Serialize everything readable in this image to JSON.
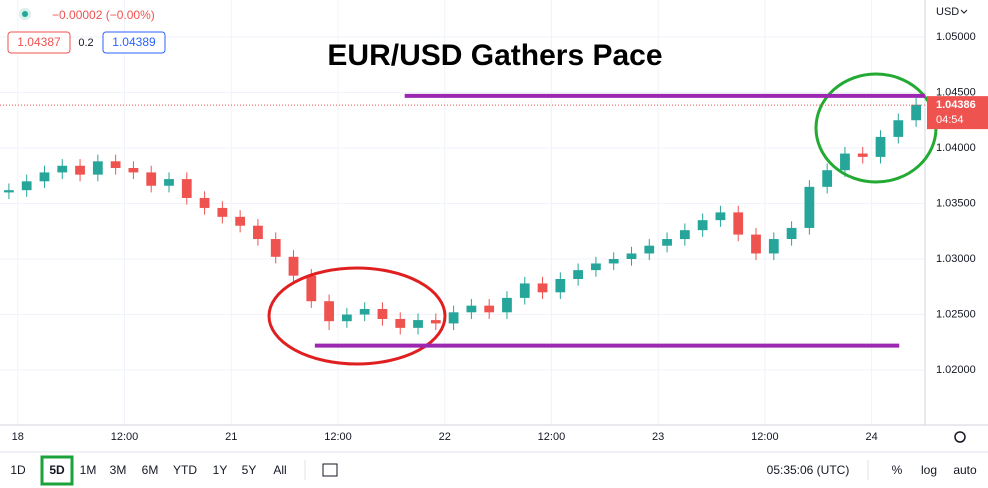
{
  "header": {
    "change": "−0.00002 (−0.00%)",
    "bid": "1.04387",
    "spread": "0.2",
    "ask": "1.04389"
  },
  "chart_data": {
    "type": "candlestick",
    "title": "EUR/USD Gathers Pace",
    "currency": "USD",
    "x": [
      -1,
      1,
      3,
      5,
      7,
      9,
      11,
      13,
      15,
      17,
      19,
      21,
      23,
      25,
      27,
      29,
      31,
      33,
      35,
      37,
      39,
      41,
      43,
      45,
      47,
      49,
      51,
      53,
      55,
      57,
      59,
      61,
      63,
      65,
      67,
      69,
      71,
      73,
      75,
      77,
      79,
      81,
      83,
      85,
      87,
      89,
      91,
      93,
      95,
      97,
      99,
      101
    ],
    "open": [
      1.036,
      1.0362,
      1.037,
      1.0378,
      1.0384,
      1.0376,
      1.0388,
      1.0382,
      1.0378,
      1.0366,
      1.0372,
      1.0355,
      1.0346,
      1.0338,
      1.033,
      1.0318,
      1.0302,
      1.0285,
      1.0262,
      1.0244,
      1.025,
      1.0255,
      1.0246,
      1.0238,
      1.0245,
      1.0242,
      1.0252,
      1.0258,
      1.0252,
      1.0265,
      1.0278,
      1.027,
      1.0282,
      1.029,
      1.0296,
      1.03,
      1.0305,
      1.0312,
      1.0318,
      1.0326,
      1.0335,
      1.0342,
      1.0322,
      1.0305,
      1.0318,
      1.0328,
      1.0365,
      1.038,
      1.0395,
      1.0392,
      1.041,
      1.0425
    ],
    "high": [
      1.0368,
      1.0376,
      1.0384,
      1.039,
      1.039,
      1.0394,
      1.0394,
      1.0388,
      1.0384,
      1.0378,
      1.0378,
      1.0361,
      1.0352,
      1.0344,
      1.0336,
      1.0324,
      1.0308,
      1.0291,
      1.0268,
      1.0256,
      1.0261,
      1.0261,
      1.0252,
      1.0251,
      1.0251,
      1.0258,
      1.0264,
      1.0264,
      1.0271,
      1.0284,
      1.0284,
      1.0288,
      1.0296,
      1.0302,
      1.0306,
      1.0311,
      1.0318,
      1.0324,
      1.0332,
      1.0341,
      1.0348,
      1.0348,
      1.0328,
      1.0324,
      1.0334,
      1.0371,
      1.0386,
      1.0401,
      1.0401,
      1.0416,
      1.0431,
      1.0445
    ],
    "low": [
      1.0354,
      1.0356,
      1.0364,
      1.0372,
      1.037,
      1.037,
      1.0376,
      1.0372,
      1.036,
      1.036,
      1.0349,
      1.034,
      1.0332,
      1.0324,
      1.0312,
      1.0296,
      1.0279,
      1.0256,
      1.0236,
      1.0238,
      1.0244,
      1.024,
      1.0232,
      1.0232,
      1.0236,
      1.0236,
      1.0246,
      1.0246,
      1.0246,
      1.0259,
      1.0264,
      1.0264,
      1.0276,
      1.0284,
      1.029,
      1.0294,
      1.0299,
      1.0306,
      1.0312,
      1.032,
      1.0329,
      1.0316,
      1.0299,
      1.0299,
      1.0312,
      1.0322,
      1.0359,
      1.0374,
      1.0386,
      1.0386,
      1.0404,
      1.0419
    ],
    "close": [
      1.0362,
      1.037,
      1.0378,
      1.0384,
      1.0376,
      1.0388,
      1.0382,
      1.0378,
      1.0366,
      1.0372,
      1.0355,
      1.0346,
      1.0338,
      1.033,
      1.0318,
      1.0302,
      1.0285,
      1.0262,
      1.0244,
      1.025,
      1.0255,
      1.0246,
      1.0238,
      1.0245,
      1.0242,
      1.0252,
      1.0258,
      1.0252,
      1.0265,
      1.0278,
      1.027,
      1.0282,
      1.029,
      1.0296,
      1.03,
      1.0305,
      1.0312,
      1.0318,
      1.0326,
      1.0335,
      1.0342,
      1.0322,
      1.0305,
      1.0318,
      1.0328,
      1.0365,
      1.038,
      1.0395,
      1.0392,
      1.041,
      1.0425,
      1.0439
    ],
    "up_color": "#26a69a",
    "down_color": "#ef5350",
    "xlim": [
      -2,
      102
    ],
    "xticks": [
      {
        "value": 0,
        "label": "18"
      },
      {
        "value": 12,
        "label": "12:00"
      },
      {
        "value": 24,
        "label": "21"
      },
      {
        "value": 36,
        "label": "12:00"
      },
      {
        "value": 48,
        "label": "22"
      },
      {
        "value": 60,
        "label": "12:00"
      },
      {
        "value": 72,
        "label": "23"
      },
      {
        "value": 84,
        "label": "12:00"
      },
      {
        "value": 96,
        "label": "24"
      }
    ],
    "ylim": [
      1.01505,
      1.05333
    ],
    "yticks": [
      {
        "value": 1.02,
        "label": "1.02000"
      },
      {
        "value": 1.025,
        "label": "1.02500"
      },
      {
        "value": 1.03,
        "label": "1.03000"
      },
      {
        "value": 1.035,
        "label": "1.03500"
      },
      {
        "value": 1.04,
        "label": "1.04000"
      },
      {
        "value": 1.045,
        "label": "1.04500"
      },
      {
        "value": 1.05,
        "label": "1.05000"
      }
    ],
    "grid": true,
    "last_price": {
      "value": 1.04386,
      "label": "1.04386"
    },
    "countdown": "04:54",
    "levels": [
      {
        "value": 1.0447,
        "x": [
          43.5,
          102
        ],
        "color": "#9c27b0"
      },
      {
        "value": 1.0222,
        "x": [
          33.4,
          99.1
        ],
        "color": "#9c27b0"
      }
    ]
  },
  "toolbar": {
    "ranges": [
      "1D",
      "5D",
      "1M",
      "3M",
      "6M",
      "YTD",
      "1Y",
      "5Y",
      "All"
    ],
    "active": 1,
    "clock": "05:35:06 (UTC)",
    "options": [
      "%",
      "log",
      "auto"
    ]
  }
}
